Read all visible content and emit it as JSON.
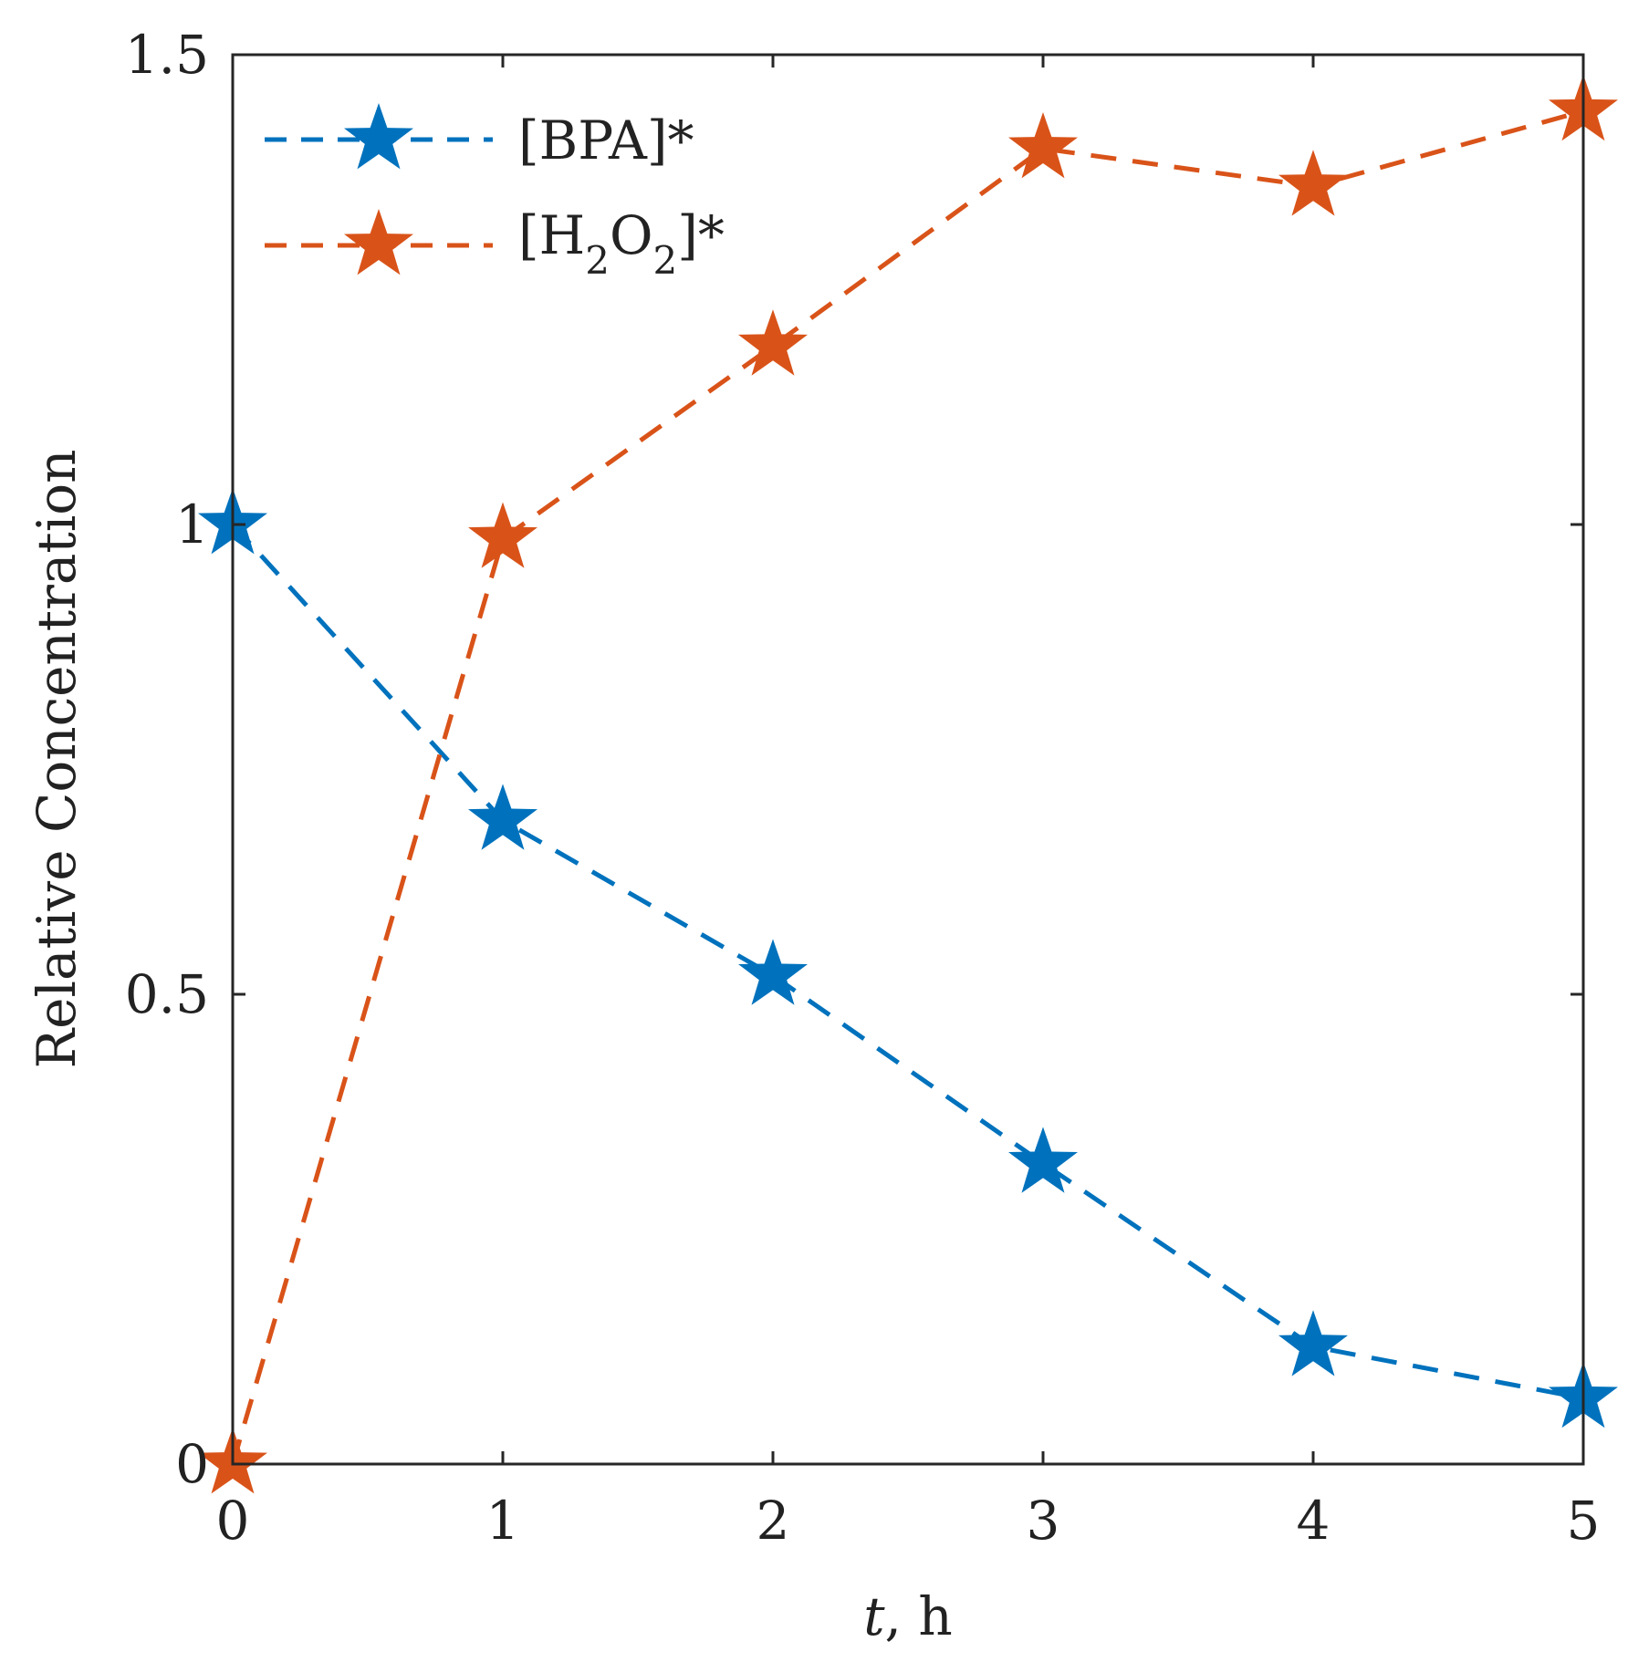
{
  "chart_data": {
    "type": "line",
    "title": "",
    "xlabel": "t, h",
    "xlabel_var": "t",
    "xlabel_unit": ", h",
    "ylabel": "Relative Concentration",
    "xlim": [
      0,
      5
    ],
    "ylim": [
      0,
      1.5
    ],
    "x_ticks": [
      0,
      1,
      2,
      3,
      4,
      5
    ],
    "x_tick_labels": [
      "0",
      "1",
      "2",
      "3",
      "4",
      "5"
    ],
    "y_ticks": [
      0,
      0.5,
      1,
      1.5
    ],
    "y_tick_labels": [
      "0",
      "0.5",
      "1",
      "1.5"
    ],
    "grid": false,
    "legend_position": "top-left",
    "x": [
      0,
      1,
      2,
      3,
      4,
      5
    ],
    "series": [
      {
        "name": "[BPA]*",
        "color": "#0072BD",
        "marker": "star",
        "line_style": "dashed",
        "values": [
          1.0,
          0.685,
          0.52,
          0.32,
          0.125,
          0.07
        ]
      },
      {
        "name": "[H2O2]*",
        "color": "#D95319",
        "marker": "star",
        "line_style": "dashed",
        "values": [
          0.0,
          0.985,
          1.19,
          1.4,
          1.36,
          1.44
        ]
      }
    ],
    "legend_labels": {
      "bpa": "[BPA]*",
      "h2o2_parts": [
        "[H",
        "2",
        "O",
        "2",
        "]*"
      ]
    }
  }
}
